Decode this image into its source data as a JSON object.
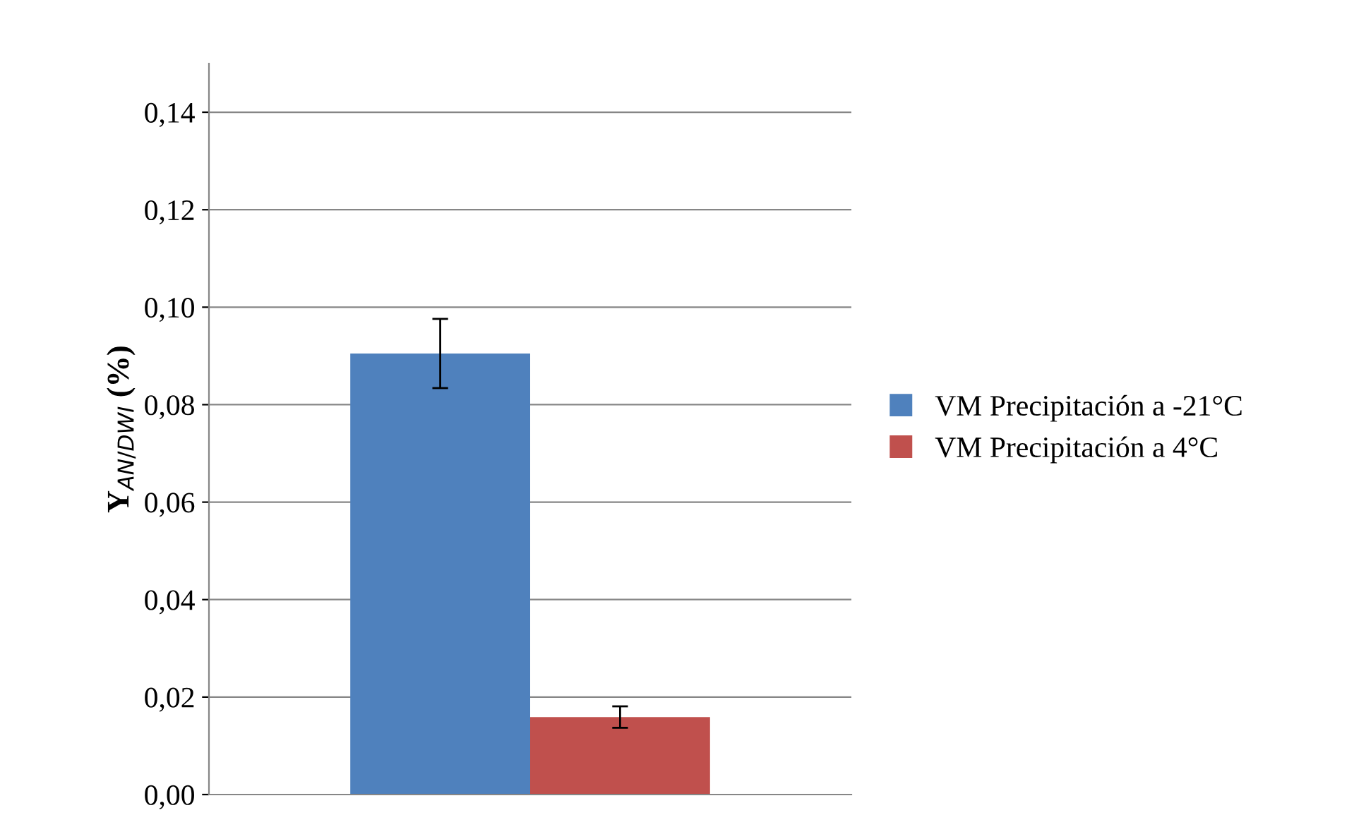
{
  "chart_data": {
    "type": "bar",
    "ylabel": "Y$_{AN/DWI}$ (%)",
    "categories": [
      null
    ],
    "series": [
      {
        "name": "VM Precipitación a -21°C",
        "color": "#4f81bd",
        "values": [
          0.0905
        ],
        "errors": [
          0.0071
        ]
      },
      {
        "name": "VM Precipitación a 4°C",
        "color": "#c0504d",
        "values": [
          0.0159
        ],
        "errors": [
          0.0022
        ]
      }
    ],
    "ylim": [
      0,
      0.15
    ],
    "yticks": [
      {
        "value": 0,
        "label": "0,00"
      },
      {
        "value": 0.02,
        "label": "0,02"
      },
      {
        "value": 0.04,
        "label": "0,04"
      },
      {
        "value": 0.06,
        "label": "0,06"
      },
      {
        "value": 0.08,
        "label": "0,08"
      },
      {
        "value": 0.1,
        "label": "0,10"
      },
      {
        "value": 0.12,
        "label": "0,12"
      },
      {
        "value": 0.14,
        "label": "0,14"
      }
    ],
    "grid": "y",
    "legend": "right"
  }
}
